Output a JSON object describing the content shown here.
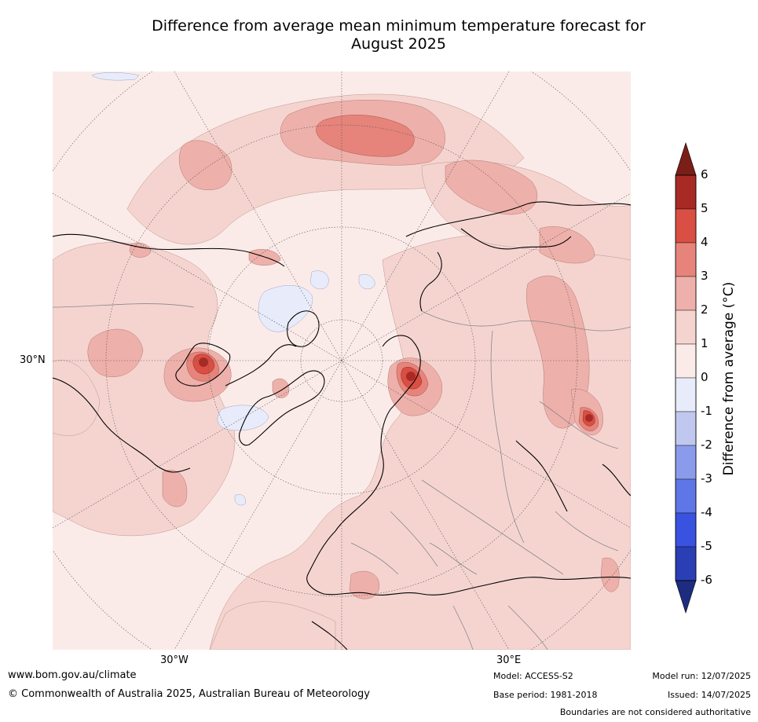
{
  "title_line1": "Difference from average mean minimum temperature forecast for",
  "title_line2": "August 2025",
  "map": {
    "projection": "north-polar-stereographic",
    "graticule_labels": {
      "lat_30N": "30°N",
      "lon_30W": "30°W",
      "lon_30E": "30°E"
    }
  },
  "colorbar": {
    "title": "Difference from average (°C)",
    "tick_labels": [
      "6",
      "5",
      "4",
      "3",
      "2",
      "1",
      "0",
      "-1",
      "-2",
      "-3",
      "-4",
      "-5",
      "-6"
    ],
    "bins": [
      {
        "range": [
          5,
          6
        ],
        "color": "#A82A25"
      },
      {
        "range": [
          4,
          5
        ],
        "color": "#D94F43"
      },
      {
        "range": [
          3,
          4
        ],
        "color": "#E6847B"
      },
      {
        "range": [
          2,
          3
        ],
        "color": "#EEB0AA"
      },
      {
        "range": [
          1,
          2
        ],
        "color": "#F5D4D0"
      },
      {
        "range": [
          0,
          1
        ],
        "color": "#FBEBE8"
      },
      {
        "range": [
          -1,
          0
        ],
        "color": "#E8ECFA"
      },
      {
        "range": [
          -2,
          -1
        ],
        "color": "#C0C8F0"
      },
      {
        "range": [
          -3,
          -2
        ],
        "color": "#8B9BEB"
      },
      {
        "range": [
          -4,
          -3
        ],
        "color": "#5F77E6"
      },
      {
        "range": [
          -5,
          -4
        ],
        "color": "#3A52E0"
      },
      {
        "range": [
          -6,
          -5
        ],
        "color": "#2A3FB4"
      }
    ],
    "over_color": "#7B1E17",
    "under_color": "#1E2C80"
  },
  "footer": {
    "website": "www.bom.gov.au/climate",
    "copyright": "© Commonwealth of Australia 2025, Australian Bureau of Meteorology",
    "model": "Model: ACCESS-S2",
    "base_period": "Base period: 1981-2018",
    "model_run": "Model run: 12/07/2025",
    "issued": "Issued: 14/07/2025",
    "disclaimer": "Boundaries are not considered authoritative"
  }
}
